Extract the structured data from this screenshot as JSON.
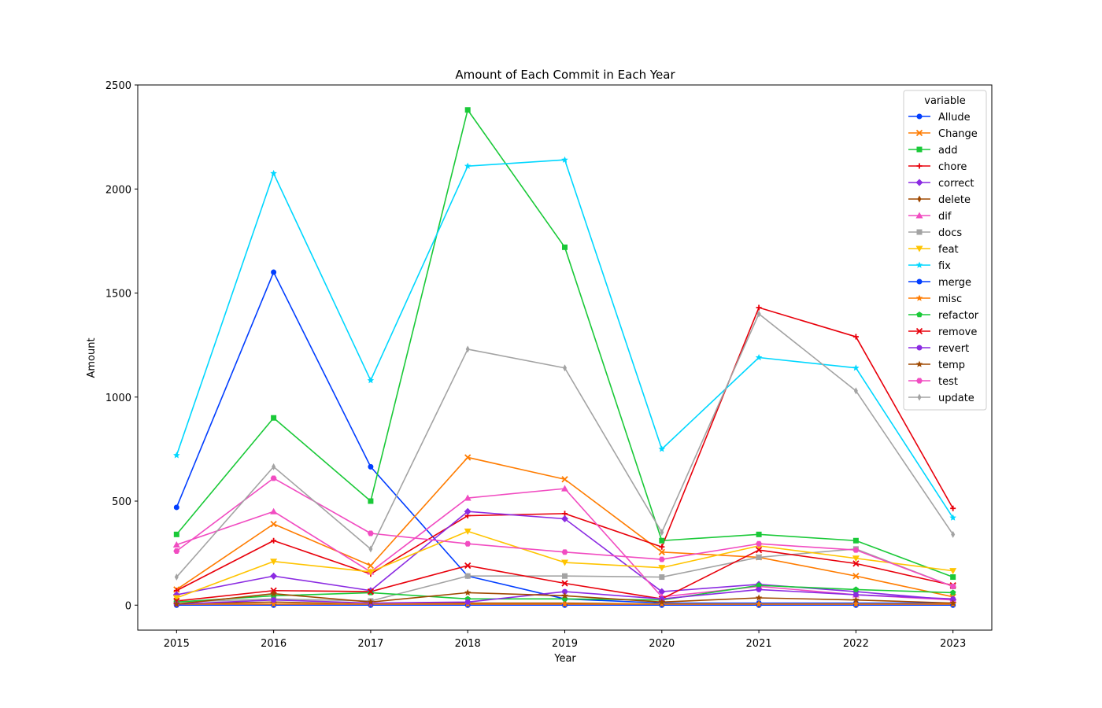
{
  "chart_data": {
    "type": "line",
    "title": "Amount of Each Commit in Each Year",
    "xlabel": "Year",
    "ylabel": "Amount",
    "x": [
      2015,
      2016,
      2017,
      2018,
      2019,
      2020,
      2021,
      2022,
      2023
    ],
    "xlim": [
      2014.6,
      2023.4
    ],
    "ylim": [
      -120,
      2500
    ],
    "yticks": [
      0,
      500,
      1000,
      1500,
      2000,
      2500
    ],
    "grid": false,
    "legend": {
      "title": "variable",
      "placement": "top-right"
    },
    "series": [
      {
        "name": "Allude",
        "color": "#023eff",
        "marker": "circle",
        "values": [
          470,
          1600,
          665,
          140,
          30,
          10,
          10,
          10,
          10
        ]
      },
      {
        "name": "Change",
        "color": "#ff7c00",
        "marker": "x",
        "values": [
          75,
          390,
          190,
          710,
          605,
          255,
          230,
          140,
          40
        ]
      },
      {
        "name": "add",
        "color": "#1ac938",
        "marker": "square",
        "values": [
          340,
          900,
          500,
          2380,
          1720,
          310,
          340,
          310,
          135
        ]
      },
      {
        "name": "chore",
        "color": "#e8000b",
        "marker": "plus",
        "values": [
          70,
          310,
          150,
          430,
          440,
          280,
          1430,
          1290,
          465
        ]
      },
      {
        "name": "correct",
        "color": "#8b2be2",
        "marker": "diamond",
        "values": [
          50,
          140,
          70,
          450,
          415,
          65,
          100,
          65,
          25
        ]
      },
      {
        "name": "delete",
        "color": "#9f4800",
        "marker": "thin-diamond",
        "values": [
          5,
          15,
          5,
          10,
          10,
          5,
          5,
          5,
          5
        ]
      },
      {
        "name": "dif",
        "color": "#f14cc1",
        "marker": "triangle-up",
        "values": [
          290,
          450,
          160,
          515,
          560,
          40,
          90,
          50,
          25
        ]
      },
      {
        "name": "docs",
        "color": "#a3a3a3",
        "marker": "square",
        "values": [
          15,
          30,
          20,
          140,
          140,
          135,
          230,
          270,
          90
        ]
      },
      {
        "name": "feat",
        "color": "#ffc400",
        "marker": "triangle-down",
        "values": [
          35,
          210,
          160,
          355,
          205,
          180,
          285,
          225,
          165
        ]
      },
      {
        "name": "fix",
        "color": "#00d7ff",
        "marker": "star",
        "values": [
          720,
          2075,
          1080,
          2110,
          2140,
          750,
          1190,
          1140,
          420
        ]
      },
      {
        "name": "merge",
        "color": "#023eff",
        "marker": "circle",
        "values": [
          0,
          0,
          0,
          0,
          0,
          0,
          0,
          0,
          0
        ]
      },
      {
        "name": "misc",
        "color": "#ff7c00",
        "marker": "star",
        "values": [
          5,
          5,
          5,
          5,
          5,
          5,
          5,
          5,
          5
        ]
      },
      {
        "name": "refactor",
        "color": "#1ac938",
        "marker": "pentagon",
        "values": [
          15,
          45,
          60,
          30,
          30,
          25,
          95,
          75,
          60
        ]
      },
      {
        "name": "remove",
        "color": "#e8000b",
        "marker": "x",
        "values": [
          20,
          70,
          65,
          190,
          105,
          30,
          265,
          200,
          95
        ]
      },
      {
        "name": "revert",
        "color": "#8b2be2",
        "marker": "circle",
        "values": [
          5,
          25,
          10,
          15,
          65,
          30,
          75,
          50,
          30
        ]
      },
      {
        "name": "temp",
        "color": "#9f4800",
        "marker": "star",
        "values": [
          5,
          55,
          15,
          60,
          45,
          15,
          35,
          25,
          10
        ]
      },
      {
        "name": "test",
        "color": "#f14cc1",
        "marker": "hexagon",
        "values": [
          260,
          610,
          345,
          295,
          255,
          220,
          295,
          265,
          90
        ]
      },
      {
        "name": "update",
        "color": "#a3a3a3",
        "marker": "thin-diamond",
        "values": [
          135,
          665,
          270,
          1230,
          1140,
          350,
          1400,
          1030,
          340
        ]
      }
    ]
  }
}
